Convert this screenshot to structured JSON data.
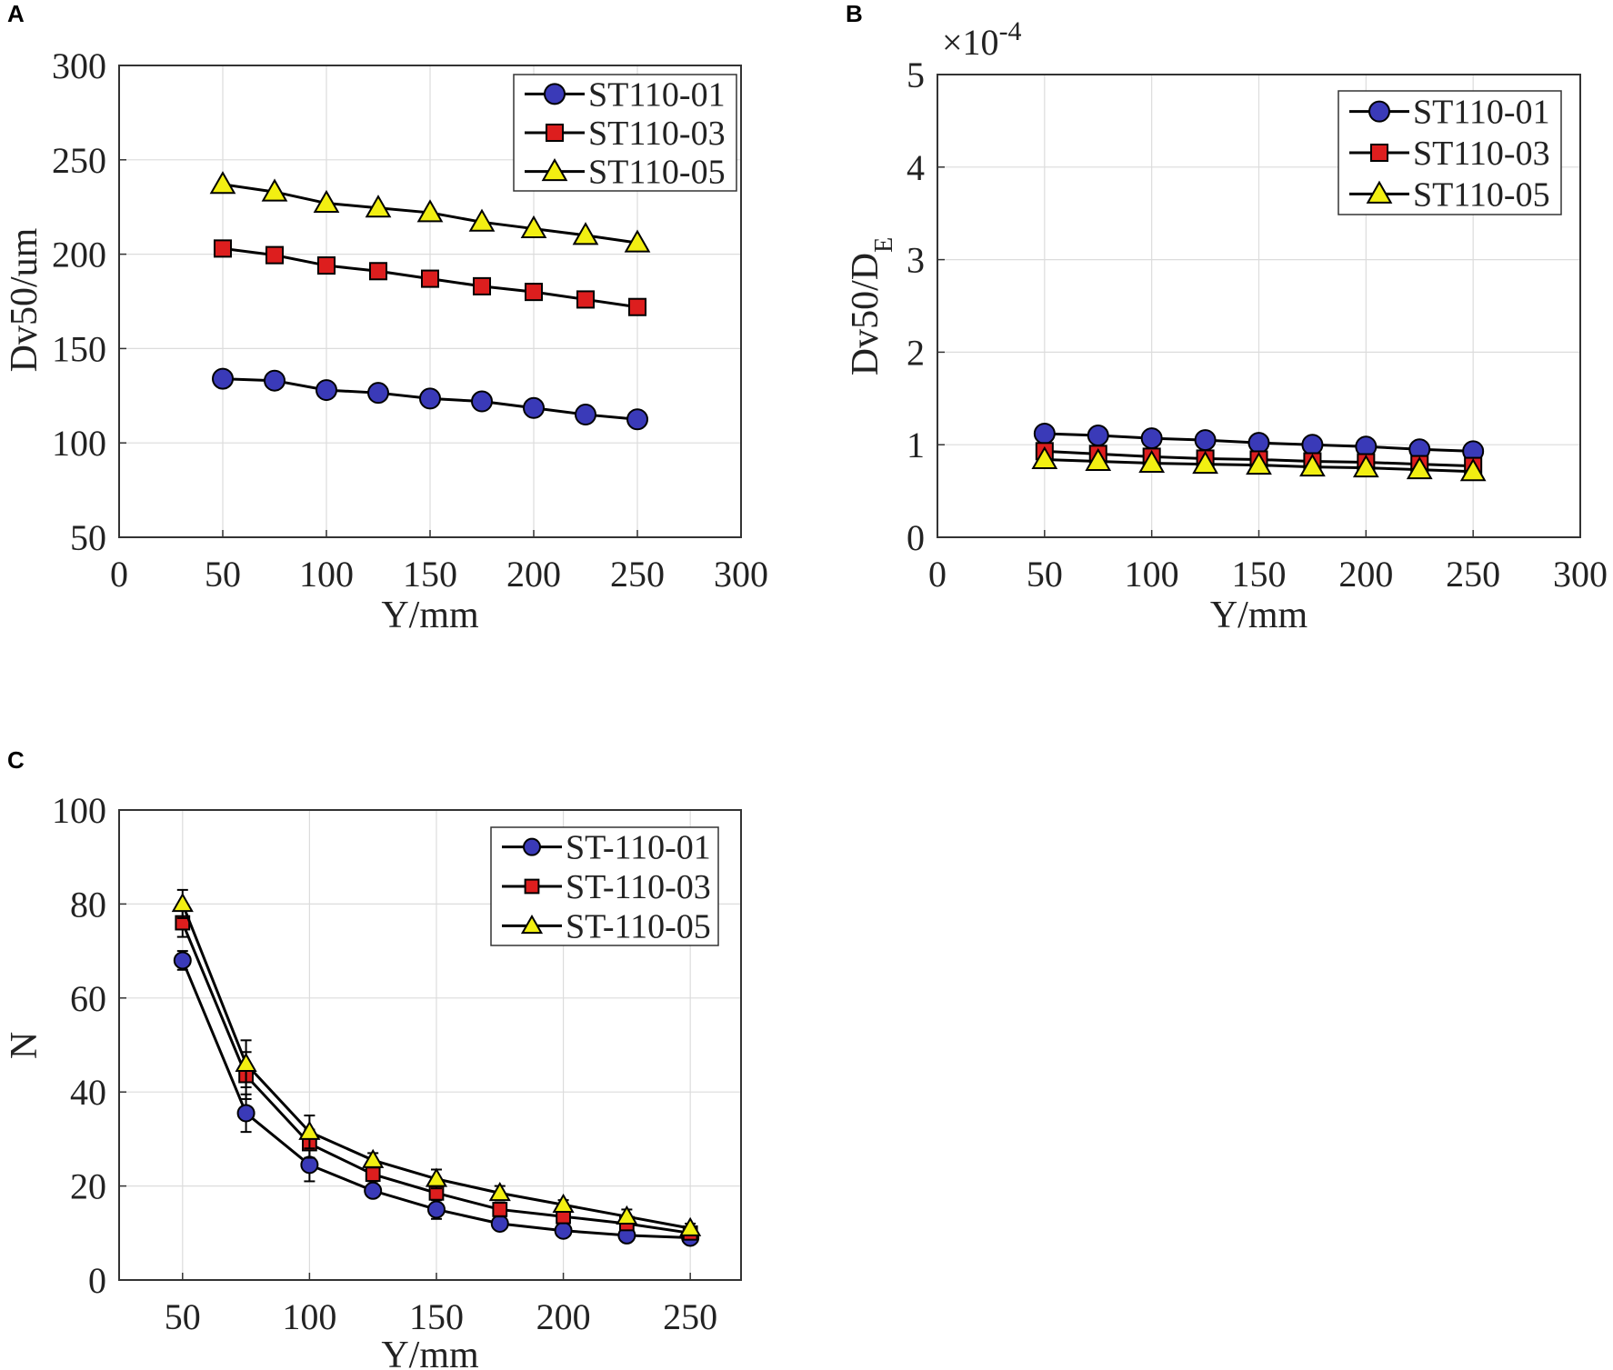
{
  "colors": {
    "blue": "#3a3ab8",
    "red": "#dd1e1e",
    "yellow": "#f2ef12"
  },
  "chart_data": [
    {
      "panel": "A",
      "type": "line",
      "xlabel": "Y/mm",
      "ylabel": "Dv50/um",
      "xlim": [
        0,
        300
      ],
      "ylim": [
        50,
        300
      ],
      "xticks": [
        "0",
        "50",
        "100",
        "150",
        "200",
        "250",
        "300"
      ],
      "yticks": [
        "50",
        "100",
        "150",
        "200",
        "250",
        "300"
      ],
      "grid": true,
      "legend_position": "top-right",
      "x": [
        50,
        75,
        100,
        125,
        150,
        175,
        200,
        225,
        250
      ],
      "series": [
        {
          "name": "ST110-01",
          "marker": "circle",
          "color": "#3a3ab8",
          "values": [
            134,
            133,
            128,
            126.5,
            123.5,
            122,
            118.5,
            115,
            112.5
          ]
        },
        {
          "name": "ST110-03",
          "marker": "square",
          "color": "#dd1e1e",
          "values": [
            203,
            199.5,
            194,
            191,
            187,
            183,
            180,
            176,
            172
          ]
        },
        {
          "name": "ST110-05",
          "marker": "triangle",
          "color": "#f2ef12",
          "values": [
            237,
            233,
            227,
            224.5,
            222,
            217,
            213.5,
            210,
            206
          ]
        }
      ]
    },
    {
      "panel": "B",
      "type": "line",
      "xlabel": "Y/mm",
      "ylabel": "Dv50/D",
      "ylabel_sub": "E",
      "multiplier_base": "×10",
      "multiplier_exp": "-4",
      "xlim": [
        0,
        300
      ],
      "ylim": [
        0,
        5
      ],
      "xticks": [
        "0",
        "50",
        "100",
        "150",
        "200",
        "250",
        "300"
      ],
      "yticks": [
        "0",
        "1",
        "2",
        "3",
        "4",
        "5"
      ],
      "grid": true,
      "legend_position": "top-right",
      "x": [
        50,
        75,
        100,
        125,
        150,
        175,
        200,
        225,
        250
      ],
      "series": [
        {
          "name": "ST110-01",
          "marker": "circle",
          "color": "#3a3ab8",
          "values": [
            1.12,
            1.1,
            1.07,
            1.05,
            1.02,
            1.0,
            0.98,
            0.95,
            0.93
          ]
        },
        {
          "name": "ST110-03",
          "marker": "square",
          "color": "#dd1e1e",
          "values": [
            0.93,
            0.9,
            0.87,
            0.85,
            0.84,
            0.82,
            0.81,
            0.79,
            0.77
          ]
        },
        {
          "name": "ST110-05",
          "marker": "triangle",
          "color": "#f2ef12",
          "values": [
            0.84,
            0.82,
            0.8,
            0.79,
            0.78,
            0.76,
            0.75,
            0.73,
            0.71
          ]
        }
      ]
    },
    {
      "panel": "C",
      "type": "line",
      "xlabel": "Y/mm",
      "ylabel": "N",
      "xlim": [
        25,
        270
      ],
      "ylim": [
        0,
        100
      ],
      "xticks": [
        "50",
        "100",
        "150",
        "200",
        "250"
      ],
      "yticks": [
        "0",
        "20",
        "40",
        "60",
        "80",
        "100"
      ],
      "grid": true,
      "legend_position": "top-right",
      "x": [
        50,
        75,
        100,
        125,
        150,
        175,
        200,
        225,
        250
      ],
      "series": [
        {
          "name": "ST-110-01",
          "marker": "circle",
          "color": "#3a3ab8",
          "values": [
            68,
            35.5,
            24.5,
            19,
            15,
            12,
            10.5,
            9.5,
            9
          ],
          "errors": [
            2,
            4,
            3.5,
            1,
            2,
            1,
            1,
            1,
            0.8
          ]
        },
        {
          "name": "ST-110-03",
          "marker": "square",
          "color": "#dd1e1e",
          "values": [
            76,
            43.5,
            29,
            22.5,
            18.5,
            15,
            13.5,
            12,
            10
          ],
          "errors": [
            3,
            5,
            3,
            1.5,
            1.5,
            1.5,
            1,
            1,
            0.8
          ]
        },
        {
          "name": "ST-110-05",
          "marker": "triangle",
          "color": "#f2ef12",
          "values": [
            80,
            46,
            31.5,
            25.5,
            21.5,
            18.5,
            16,
            13.5,
            11
          ],
          "errors": [
            3,
            5,
            3.5,
            1.5,
            2,
            1.5,
            1,
            1.5,
            1
          ]
        }
      ]
    }
  ]
}
